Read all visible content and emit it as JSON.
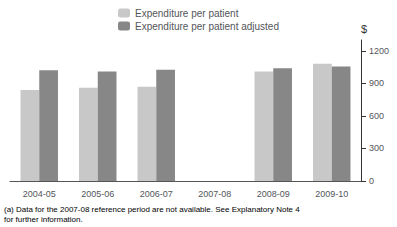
{
  "chart_data": {
    "type": "bar",
    "categories": [
      "2004-05",
      "2005-06",
      "2006-07",
      "2007-08",
      "2008-09",
      "2009-10"
    ],
    "series": [
      {
        "name": "Expenditure per patient",
        "color": "#c8c8c8",
        "values": [
          840,
          860,
          870,
          null,
          1010,
          1080
        ]
      },
      {
        "name": "Expenditure per patient adjusted",
        "color": "#878787",
        "values": [
          1020,
          1010,
          1025,
          null,
          1040,
          1055
        ]
      }
    ],
    "ylabel": "$",
    "ylim": [
      0,
      1300
    ],
    "yticks": [
      0,
      300,
      600,
      900,
      1200
    ],
    "annotations": [
      "(a) Data for the 2007-08 reference period are not available. See Explanatory Note 4\nfor further information."
    ],
    "legend": "top",
    "grid": false
  }
}
